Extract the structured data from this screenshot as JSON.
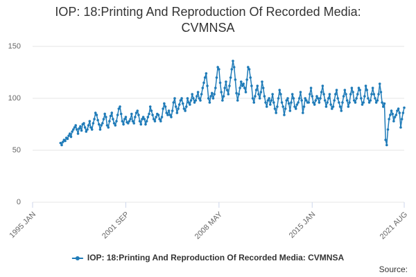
{
  "chart_data": {
    "type": "line",
    "title": "IOP: 18:Printing And Reproduction Of Recorded Media: CVMNSA",
    "source": "Source:",
    "legend": "bottom",
    "grid": true,
    "ylim": [
      0,
      150
    ],
    "yticks": [
      0,
      50,
      100,
      150
    ],
    "xlim": [
      "1995-01",
      "2021-08"
    ],
    "xticks": [
      {
        "value": "1995-01",
        "label": "1995 JAN"
      },
      {
        "value": "2001-09",
        "label": "2001 SEP"
      },
      {
        "value": "2008-05",
        "label": "2008 MAY"
      },
      {
        "value": "2015-01",
        "label": "2015 JAN"
      },
      {
        "value": "2021-08",
        "label": "2021 AUG"
      }
    ],
    "x": [
      "1997-01",
      "1997-02",
      "1997-03",
      "1997-04",
      "1997-05",
      "1997-06",
      "1997-07",
      "1997-08",
      "1997-09",
      "1997-10",
      "1997-11",
      "1997-12",
      "1998-01",
      "1998-02",
      "1998-03",
      "1998-04",
      "1998-05",
      "1998-06",
      "1998-07",
      "1998-08",
      "1998-09",
      "1998-10",
      "1998-11",
      "1998-12",
      "1999-01",
      "1999-02",
      "1999-03",
      "1999-04",
      "1999-05",
      "1999-06",
      "1999-07",
      "1999-08",
      "1999-09",
      "1999-10",
      "1999-11",
      "1999-12",
      "2000-01",
      "2000-02",
      "2000-03",
      "2000-04",
      "2000-05",
      "2000-06",
      "2000-07",
      "2000-08",
      "2000-09",
      "2000-10",
      "2000-11",
      "2000-12",
      "2001-01",
      "2001-02",
      "2001-03",
      "2001-04",
      "2001-05",
      "2001-06",
      "2001-07",
      "2001-08",
      "2001-09",
      "2001-10",
      "2001-11",
      "2001-12",
      "2002-01",
      "2002-02",
      "2002-03",
      "2002-04",
      "2002-05",
      "2002-06",
      "2002-07",
      "2002-08",
      "2002-09",
      "2002-10",
      "2002-11",
      "2002-12",
      "2003-01",
      "2003-02",
      "2003-03",
      "2003-04",
      "2003-05",
      "2003-06",
      "2003-07",
      "2003-08",
      "2003-09",
      "2003-10",
      "2003-11",
      "2003-12",
      "2004-01",
      "2004-02",
      "2004-03",
      "2004-04",
      "2004-05",
      "2004-06",
      "2004-07",
      "2004-08",
      "2004-09",
      "2004-10",
      "2004-11",
      "2004-12",
      "2005-01",
      "2005-02",
      "2005-03",
      "2005-04",
      "2005-05",
      "2005-06",
      "2005-07",
      "2005-08",
      "2005-09",
      "2005-10",
      "2005-11",
      "2005-12",
      "2006-01",
      "2006-02",
      "2006-03",
      "2006-04",
      "2006-05",
      "2006-06",
      "2006-07",
      "2006-08",
      "2006-09",
      "2006-10",
      "2006-11",
      "2006-12",
      "2007-01",
      "2007-02",
      "2007-03",
      "2007-04",
      "2007-05",
      "2007-06",
      "2007-07",
      "2007-08",
      "2007-09",
      "2007-10",
      "2007-11",
      "2007-12",
      "2008-01",
      "2008-02",
      "2008-03",
      "2008-04",
      "2008-05",
      "2008-06",
      "2008-07",
      "2008-08",
      "2008-09",
      "2008-10",
      "2008-11",
      "2008-12",
      "2009-01",
      "2009-02",
      "2009-03",
      "2009-04",
      "2009-05",
      "2009-06",
      "2009-07",
      "2009-08",
      "2009-09",
      "2009-10",
      "2009-11",
      "2009-12",
      "2010-01",
      "2010-02",
      "2010-03",
      "2010-04",
      "2010-05",
      "2010-06",
      "2010-07",
      "2010-08",
      "2010-09",
      "2010-10",
      "2010-11",
      "2010-12",
      "2011-01",
      "2011-02",
      "2011-03",
      "2011-04",
      "2011-05",
      "2011-06",
      "2011-07",
      "2011-08",
      "2011-09",
      "2011-10",
      "2011-11",
      "2011-12",
      "2012-01",
      "2012-02",
      "2012-03",
      "2012-04",
      "2012-05",
      "2012-06",
      "2012-07",
      "2012-08",
      "2012-09",
      "2012-10",
      "2012-11",
      "2012-12",
      "2013-01",
      "2013-02",
      "2013-03",
      "2013-04",
      "2013-05",
      "2013-06",
      "2013-07",
      "2013-08",
      "2013-09",
      "2013-10",
      "2013-11",
      "2013-12",
      "2014-01",
      "2014-02",
      "2014-03",
      "2014-04",
      "2014-05",
      "2014-06",
      "2014-07",
      "2014-08",
      "2014-09",
      "2014-10",
      "2014-11",
      "2014-12",
      "2015-01",
      "2015-02",
      "2015-03",
      "2015-04",
      "2015-05",
      "2015-06",
      "2015-07",
      "2015-08",
      "2015-09",
      "2015-10",
      "2015-11",
      "2015-12",
      "2016-01",
      "2016-02",
      "2016-03",
      "2016-04",
      "2016-05",
      "2016-06",
      "2016-07",
      "2016-08",
      "2016-09",
      "2016-10",
      "2016-11",
      "2016-12",
      "2017-01",
      "2017-02",
      "2017-03",
      "2017-04",
      "2017-05",
      "2017-06",
      "2017-07",
      "2017-08",
      "2017-09",
      "2017-10",
      "2017-11",
      "2017-12",
      "2018-01",
      "2018-02",
      "2018-03",
      "2018-04",
      "2018-05",
      "2018-06",
      "2018-07",
      "2018-08",
      "2018-09",
      "2018-10",
      "2018-11",
      "2018-12",
      "2019-01",
      "2019-02",
      "2019-03",
      "2019-04",
      "2019-05",
      "2019-06",
      "2019-07",
      "2019-08",
      "2019-09",
      "2019-10",
      "2019-11",
      "2019-12",
      "2020-01",
      "2020-02",
      "2020-03",
      "2020-04",
      "2020-05",
      "2020-06",
      "2020-07",
      "2020-08",
      "2020-09",
      "2020-10",
      "2020-11",
      "2020-12",
      "2021-01",
      "2021-02",
      "2021-03",
      "2021-04",
      "2021-05",
      "2021-06",
      "2021-07",
      "2021-08"
    ],
    "series": [
      {
        "name": "IOP: 18:Printing And Reproduction Of Recorded Media: CVMNSA",
        "color": "#1f7bb8",
        "values": [
          57,
          55,
          58,
          60,
          59,
          62,
          61,
          64,
          66,
          63,
          68,
          70,
          72,
          74,
          70,
          66,
          71,
          73,
          69,
          75,
          76,
          72,
          68,
          70,
          74,
          78,
          72,
          70,
          76,
          80,
          86,
          84,
          79,
          75,
          70,
          74,
          76,
          80,
          85,
          82,
          74,
          72,
          78,
          83,
          86,
          80,
          76,
          74,
          78,
          84,
          90,
          92,
          85,
          78,
          75,
          80,
          82,
          77,
          76,
          78,
          80,
          85,
          78,
          76,
          82,
          86,
          88,
          84,
          78,
          75,
          80,
          82,
          80,
          75,
          78,
          82,
          85,
          92,
          88,
          84,
          80,
          78,
          82,
          85,
          84,
          80,
          78,
          82,
          90,
          95,
          92,
          86,
          84,
          88,
          84,
          82,
          88,
          96,
          100,
          92,
          86,
          90,
          94,
          98,
          100,
          95,
          90,
          88,
          92,
          100,
          96,
          94,
          98,
          104,
          100,
          96,
          98,
          102,
          106,
          100,
          98,
          104,
          110,
          115,
          120,
          124,
          112,
          100,
          96,
          102,
          105,
          100,
          104,
          110,
          120,
          130,
          128,
          115,
          106,
          98,
          102,
          110,
          116,
          108,
          104,
          112,
          120,
          128,
          136,
          130,
          118,
          105,
          98,
          104,
          110,
          116,
          112,
          114,
          110,
          106,
          118,
          130,
          128,
          120,
          112,
          100,
          96,
          102,
          108,
          112,
          104,
          100,
          106,
          116,
          110,
          102,
          96,
          92,
          98,
          100,
          94,
          98,
          104,
          96,
          90,
          86,
          92,
          100,
          108,
          104,
          96,
          92,
          84,
          90,
          98,
          100,
          95,
          88,
          96,
          104,
          100,
          92,
          90,
          94,
          96,
          100,
          106,
          98,
          86,
          92,
          100,
          98,
          96,
          96,
          104,
          110,
          102,
          96,
          94,
          98,
          102,
          100,
          96,
          100,
          106,
          112,
          104,
          98,
          92,
          96,
          100,
          104,
          94,
          90,
          92,
          98,
          104,
          108,
          100,
          96,
          92,
          88,
          96,
          102,
          108,
          104,
          98,
          92,
          96,
          104,
          110,
          106,
          98,
          96,
          100,
          104,
          110,
          108,
          100,
          94,
          96,
          102,
          112,
          108,
          100,
          96,
          98,
          104,
          110,
          104,
          100,
          96,
          98,
          104,
          114,
          106,
          96,
          92,
          95,
          60,
          55,
          70,
          80,
          84,
          88,
          85,
          78,
          82,
          84,
          88,
          90,
          86,
          72,
          80,
          86,
          91
        ]
      }
    ]
  }
}
